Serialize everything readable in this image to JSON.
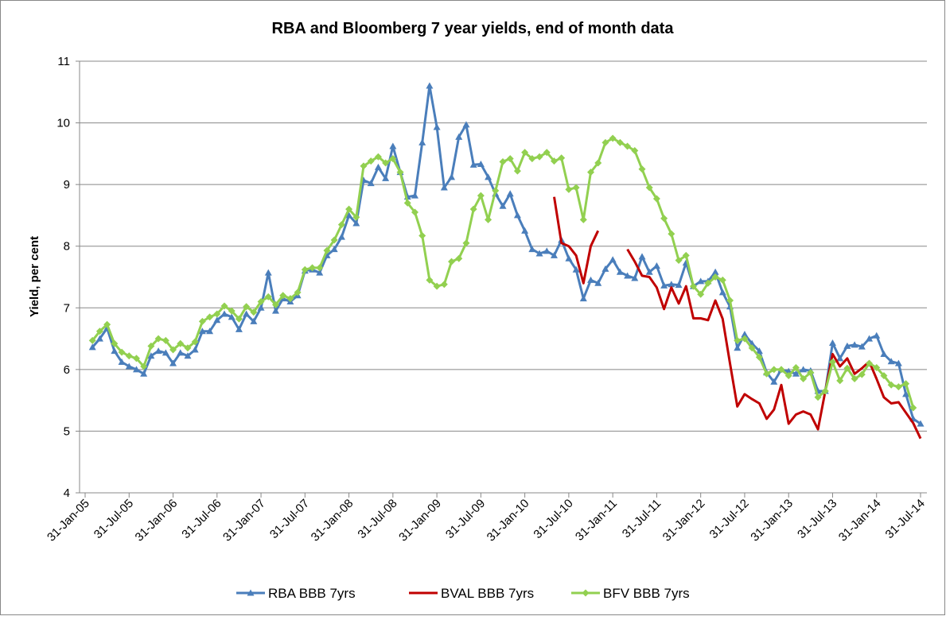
{
  "chart_data": {
    "type": "line",
    "title": "RBA and Bloomberg 7 year yields, end of month data",
    "y_label": "Yield, per cent",
    "categories": [
      "31-Jan-05",
      null,
      null,
      null,
      null,
      null,
      "31-Jul-05",
      null,
      null,
      null,
      null,
      null,
      "31-Jan-06",
      null,
      null,
      null,
      null,
      null,
      "31-Jul-06",
      null,
      null,
      null,
      null,
      null,
      "31-Jan-07",
      null,
      null,
      null,
      null,
      null,
      "31-Jul-07",
      null,
      null,
      null,
      null,
      null,
      "31-Jan-08",
      null,
      null,
      null,
      null,
      null,
      "31-Jul-08",
      null,
      null,
      null,
      null,
      null,
      "31-Jan-09",
      null,
      null,
      null,
      null,
      null,
      "31-Jul-09",
      null,
      null,
      null,
      null,
      null,
      "31-Jan-10",
      null,
      null,
      null,
      null,
      null,
      "31-Jul-10",
      null,
      null,
      null,
      null,
      null,
      "31-Jan-11",
      null,
      null,
      null,
      null,
      null,
      "31-Jul-11",
      null,
      null,
      null,
      null,
      null,
      "31-Jan-12",
      null,
      null,
      null,
      null,
      null,
      "31-Jul-12",
      null,
      null,
      null,
      null,
      null,
      "31-Jan-13",
      null,
      null,
      null,
      null,
      null,
      "31-Jul-13",
      null,
      null,
      null,
      null,
      null,
      "31-Jan-14",
      null,
      null,
      null,
      null,
      null,
      "31-Jul-14"
    ],
    "series": [
      {
        "name": "RBA BBB 7yrs",
        "color": "#4a7ebb",
        "marker": "triangle",
        "values": [
          null,
          6.36,
          6.5,
          6.67,
          6.3,
          6.12,
          6.05,
          6.0,
          5.93,
          6.22,
          6.3,
          6.27,
          6.1,
          6.27,
          6.22,
          6.32,
          6.62,
          6.62,
          6.8,
          6.9,
          6.85,
          6.65,
          6.9,
          6.78,
          7.0,
          7.57,
          6.95,
          7.15,
          7.1,
          7.2,
          7.6,
          7.62,
          7.57,
          7.85,
          7.95,
          8.15,
          8.5,
          8.37,
          9.07,
          9.02,
          9.28,
          9.1,
          9.62,
          9.2,
          8.8,
          8.82,
          9.68,
          10.6,
          9.93,
          8.95,
          9.12,
          9.77,
          9.97,
          9.32,
          9.33,
          9.12,
          8.85,
          8.65,
          8.85,
          8.5,
          8.25,
          7.95,
          7.88,
          7.92,
          7.85,
          8.1,
          7.8,
          7.62,
          7.15,
          7.45,
          7.4,
          7.63,
          7.78,
          7.58,
          7.52,
          7.48,
          7.83,
          7.58,
          7.68,
          7.36,
          7.38,
          7.37,
          7.73,
          7.35,
          7.43,
          7.43,
          7.58,
          7.25,
          7.02,
          6.35,
          6.57,
          6.42,
          6.3,
          5.95,
          5.8,
          6.0,
          5.97,
          5.93,
          6.0,
          5.98,
          5.65,
          5.65,
          6.43,
          6.18,
          6.38,
          6.4,
          6.37,
          6.5,
          6.55,
          6.25,
          6.13,
          6.1,
          5.6,
          5.2,
          5.12
        ]
      },
      {
        "name": "BVAL BBB 7yrs",
        "color": "#c00000",
        "marker": "none",
        "values": [
          null,
          null,
          null,
          null,
          null,
          null,
          null,
          null,
          null,
          null,
          null,
          null,
          null,
          null,
          null,
          null,
          null,
          null,
          null,
          null,
          null,
          null,
          null,
          null,
          null,
          null,
          null,
          null,
          null,
          null,
          null,
          null,
          null,
          null,
          null,
          null,
          null,
          null,
          null,
          null,
          null,
          null,
          null,
          null,
          null,
          null,
          null,
          null,
          null,
          null,
          null,
          null,
          null,
          null,
          null,
          null,
          null,
          null,
          null,
          null,
          null,
          null,
          null,
          null,
          8.8,
          8.05,
          8.0,
          7.85,
          7.4,
          8.0,
          8.25,
          null,
          null,
          null,
          7.95,
          7.75,
          7.52,
          7.5,
          7.33,
          6.98,
          7.33,
          7.07,
          7.35,
          6.83,
          6.83,
          6.8,
          7.12,
          6.82,
          6.1,
          5.4,
          5.6,
          5.52,
          5.45,
          5.2,
          5.35,
          5.75,
          5.12,
          5.27,
          5.32,
          5.27,
          5.03,
          5.65,
          6.25,
          6.05,
          6.18,
          5.93,
          6.02,
          6.13,
          5.85,
          5.55,
          5.45,
          5.47,
          5.3,
          5.13,
          4.88
        ]
      },
      {
        "name": "BFV BBB 7yrs",
        "color": "#92d050",
        "marker": "diamond",
        "values": [
          null,
          6.47,
          6.62,
          6.73,
          6.42,
          6.28,
          6.22,
          6.18,
          6.05,
          6.38,
          6.5,
          6.47,
          6.32,
          6.42,
          6.35,
          6.45,
          6.78,
          6.85,
          6.9,
          7.03,
          6.95,
          6.82,
          7.02,
          6.93,
          7.1,
          7.18,
          7.05,
          7.2,
          7.15,
          7.25,
          7.62,
          7.65,
          7.65,
          7.93,
          8.1,
          8.35,
          8.6,
          8.47,
          9.3,
          9.38,
          9.45,
          9.35,
          9.42,
          9.2,
          8.7,
          8.55,
          8.17,
          7.45,
          7.35,
          7.38,
          7.75,
          7.8,
          8.05,
          8.6,
          8.82,
          8.43,
          8.9,
          9.37,
          9.42,
          9.22,
          9.52,
          9.42,
          9.45,
          9.52,
          9.38,
          9.43,
          8.92,
          8.95,
          8.43,
          9.2,
          9.35,
          9.68,
          9.75,
          9.68,
          9.62,
          9.55,
          9.25,
          8.95,
          8.77,
          8.45,
          8.2,
          7.77,
          7.85,
          7.35,
          7.22,
          7.4,
          7.5,
          7.45,
          7.12,
          6.47,
          6.5,
          6.35,
          6.2,
          5.93,
          6.0,
          6.0,
          5.9,
          6.03,
          5.85,
          5.95,
          5.55,
          5.65,
          6.12,
          5.82,
          6.02,
          5.85,
          5.92,
          6.1,
          6.03,
          5.9,
          5.75,
          5.72,
          5.77,
          5.38,
          null
        ]
      }
    ],
    "ylim": [
      4,
      11
    ],
    "yticks": [
      4,
      5,
      6,
      7,
      8,
      9,
      10,
      11
    ],
    "grid": true,
    "legend": "bottom"
  }
}
